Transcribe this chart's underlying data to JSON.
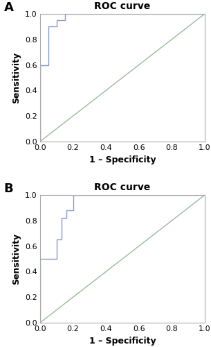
{
  "title": "ROC curve",
  "xlabel": "1 – Specificity",
  "ylabel": "Sensitivity",
  "roc_color": "#8899cc",
  "diagonal_color": "#99bb99",
  "background_color": "#ffffff",
  "panel_A_fpr": [
    0.0,
    0.0,
    0.05,
    0.05,
    0.1,
    0.1,
    0.15,
    0.15,
    0.5,
    0.5,
    1.0
  ],
  "panel_A_tpr": [
    0.0,
    0.6,
    0.6,
    0.9,
    0.9,
    0.95,
    0.95,
    1.0,
    1.0,
    1.0,
    1.0
  ],
  "panel_B_fpr": [
    0.0,
    0.0,
    0.1,
    0.1,
    0.13,
    0.13,
    0.16,
    0.16,
    0.2,
    0.2,
    1.0
  ],
  "panel_B_tpr": [
    0.0,
    0.5,
    0.5,
    0.65,
    0.65,
    0.82,
    0.82,
    0.88,
    0.88,
    1.0,
    1.0
  ],
  "xticks": [
    0.0,
    0.2,
    0.4,
    0.6,
    0.8,
    1.0
  ],
  "yticks": [
    0.0,
    0.2,
    0.4,
    0.6,
    0.8,
    1.0
  ],
  "label_A": "A",
  "label_B": "B",
  "title_fontsize": 10,
  "axis_label_fontsize": 9,
  "tick_fontsize": 8,
  "panel_label_fontsize": 13
}
